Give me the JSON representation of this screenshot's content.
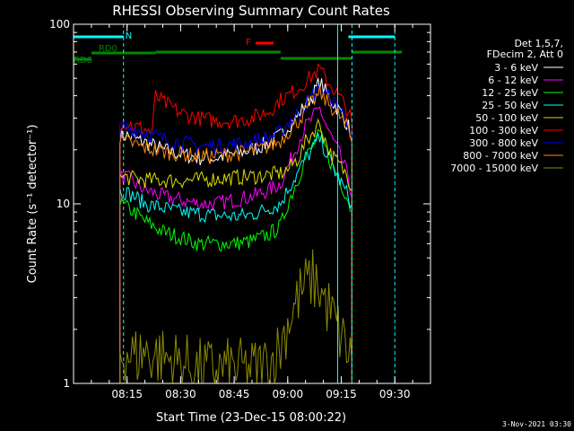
{
  "chart_data": {
    "type": "line",
    "title": "RHESSI Observing Summary Count Rates",
    "xlabel": "Start Time (23-Dec-15 08:00:22)",
    "ylabel": "Count Rate (s⁻¹ detector⁻¹)",
    "x_unit": "time",
    "xlim": [
      "08:00",
      "09:40"
    ],
    "ylim": [
      1,
      100
    ],
    "y_scale": "log",
    "x_ticks": [
      "08:15",
      "08:30",
      "08:45",
      "09:00",
      "09:15",
      "09:30"
    ],
    "y_ticks": [
      1,
      10,
      100
    ],
    "y_tick_labels": [
      "1",
      "10",
      "100"
    ],
    "legend_position": "right",
    "legend_header": [
      "Det 1,5,7,",
      "FDecim 2, Att 0"
    ],
    "footer": "3-Nov-2021 03:30",
    "grid": false,
    "series": [
      {
        "name": "3 - 6 keV",
        "color": "#ffffff",
        "x": [
          "08:13",
          "08:15",
          "08:17",
          "08:20",
          "08:25",
          "08:30",
          "08:35",
          "08:40",
          "08:45",
          "08:50",
          "08:55",
          "08:58",
          "09:00",
          "09:03",
          "09:05",
          "09:07",
          "09:08",
          "09:09",
          "09:10",
          "09:12",
          "09:15",
          "09:17",
          "09:18"
        ],
        "y": [
          24,
          24,
          23,
          22,
          20,
          19,
          18,
          18,
          19,
          20,
          22,
          24,
          27,
          31,
          36,
          40,
          44,
          48,
          44,
          38,
          32,
          27,
          24
        ]
      },
      {
        "name": "6 - 12 keV",
        "color": "#ff00ff",
        "x": [
          "08:13",
          "08:15",
          "08:17",
          "08:20",
          "08:25",
          "08:30",
          "08:35",
          "08:40",
          "08:45",
          "08:50",
          "08:55",
          "08:58",
          "09:00",
          "09:03",
          "09:05",
          "09:07",
          "09:08",
          "09:09",
          "09:10",
          "09:12",
          "09:15",
          "09:17",
          "09:18"
        ],
        "y": [
          14,
          14,
          13,
          12,
          11,
          10.5,
          10,
          10,
          10.5,
          11,
          12,
          13,
          16,
          22,
          27,
          30,
          32,
          34,
          30,
          24,
          18,
          14,
          11
        ]
      },
      {
        "name": "12 - 25 keV",
        "color": "#00ff00",
        "x": [
          "08:13",
          "08:15",
          "08:17",
          "08:20",
          "08:25",
          "08:30",
          "08:35",
          "08:40",
          "08:45",
          "08:50",
          "08:55",
          "08:58",
          "09:00",
          "09:03",
          "09:05",
          "09:07",
          "09:08",
          "09:09",
          "09:10",
          "09:12",
          "09:15",
          "09:17",
          "09:18"
        ],
        "y": [
          10,
          9.5,
          9,
          8,
          7,
          6.5,
          6,
          6,
          6,
          6.2,
          6.8,
          7.5,
          10,
          14,
          18,
          21,
          23,
          24,
          22,
          17,
          13,
          10.5,
          9
        ]
      },
      {
        "name": "25 - 50 keV",
        "color": "#00ffff",
        "x": [
          "08:13",
          "08:15",
          "08:17",
          "08:20",
          "08:25",
          "08:30",
          "08:35",
          "08:40",
          "08:45",
          "08:50",
          "08:55",
          "08:58",
          "09:00",
          "09:03",
          "09:05",
          "09:07",
          "09:08",
          "09:09",
          "09:10",
          "09:12",
          "09:15",
          "09:17",
          "09:18"
        ],
        "y": [
          12,
          11.5,
          11,
          10,
          9.5,
          9,
          8.8,
          8.6,
          8.5,
          8.7,
          9.5,
          10,
          12,
          15,
          18,
          20,
          22,
          23,
          21,
          17,
          13,
          11,
          10
        ]
      },
      {
        "name": "50 - 100 keV",
        "color": "#dddd00",
        "x": [
          "08:13",
          "08:15",
          "08:17",
          "08:20",
          "08:25",
          "08:30",
          "08:35",
          "08:40",
          "08:45",
          "08:50",
          "08:55",
          "08:58",
          "09:00",
          "09:03",
          "09:05",
          "09:07",
          "09:08",
          "09:09",
          "09:10",
          "09:12",
          "09:15",
          "09:17",
          "09:18"
        ],
        "y": [
          14,
          14,
          13.8,
          13.6,
          13.5,
          13.5,
          13.6,
          13.8,
          14,
          14.2,
          14.5,
          14.8,
          15.5,
          18,
          22,
          25,
          27,
          28,
          24,
          19,
          16,
          14,
          12
        ]
      },
      {
        "name": "100 - 300 keV",
        "color": "#ff0000",
        "x": [
          "08:13",
          "08:15",
          "08:17",
          "08:20",
          "08:22",
          "08:23",
          "08:25",
          "08:30",
          "08:35",
          "08:40",
          "08:45",
          "08:50",
          "08:55",
          "08:58",
          "09:00",
          "09:03",
          "09:05",
          "09:07",
          "09:08",
          "09:09",
          "09:10",
          "09:12",
          "09:15",
          "09:17",
          "09:18"
        ],
        "y": [
          28,
          28,
          27,
          26,
          25,
          40,
          37,
          32,
          30,
          29,
          29,
          30,
          33,
          38,
          40,
          44,
          48,
          52,
          54,
          56,
          52,
          46,
          38,
          33,
          28
        ]
      },
      {
        "name": "300 - 800 keV",
        "color": "#0000ff",
        "x": [
          "08:13",
          "08:15",
          "08:17",
          "08:20",
          "08:25",
          "08:30",
          "08:35",
          "08:40",
          "08:45",
          "08:50",
          "08:55",
          "08:58",
          "09:00",
          "09:03",
          "09:05",
          "09:07",
          "09:08",
          "09:09",
          "09:10",
          "09:12",
          "09:15",
          "09:17",
          "09:18"
        ],
        "y": [
          27,
          26.5,
          26,
          25,
          23,
          22,
          21,
          21,
          21.5,
          22,
          23.5,
          25,
          28,
          32,
          36,
          40,
          42,
          44,
          42,
          38,
          33,
          28,
          24
        ]
      },
      {
        "name": "800 - 7000 keV",
        "color": "#ff8800",
        "x": [
          "08:13",
          "08:15",
          "08:17",
          "08:20",
          "08:25",
          "08:30",
          "08:35",
          "08:40",
          "08:45",
          "08:50",
          "08:55",
          "08:58",
          "09:00",
          "09:03",
          "09:05",
          "09:07",
          "09:08",
          "09:09",
          "09:10",
          "09:12",
          "09:15",
          "09:17",
          "09:18"
        ],
        "y": [
          22,
          22,
          21.5,
          20.5,
          19.5,
          19,
          18.5,
          18.5,
          19,
          19.5,
          21,
          22.5,
          25,
          29,
          33,
          37,
          39,
          41,
          39,
          35,
          30,
          26,
          22
        ]
      },
      {
        "name": "7000 - 15000 keV",
        "color": "#8b8b00",
        "x": [
          "08:13",
          "08:15",
          "08:17",
          "08:20",
          "08:25",
          "08:30",
          "08:35",
          "08:40",
          "08:45",
          "08:50",
          "08:55",
          "08:58",
          "09:00",
          "09:03",
          "09:05",
          "09:07",
          "09:08",
          "09:09",
          "09:10",
          "09:12",
          "09:15",
          "09:17",
          "09:18"
        ],
        "y": [
          1.5,
          1.5,
          1.4,
          1.5,
          1.4,
          1.3,
          1.2,
          1.2,
          1.2,
          1.2,
          1.3,
          1.6,
          2.2,
          3,
          3.5,
          3.8,
          3.6,
          3.4,
          3,
          2.5,
          1.8,
          1.5,
          1.3
        ]
      }
    ],
    "annotations": {
      "N": {
        "label": "N",
        "color": "#00ffff",
        "intervals": [
          [
            "08:00",
            "08:14"
          ],
          [
            "09:17",
            "09:30"
          ]
        ]
      },
      "F": {
        "label": "F",
        "color": "#ff0000",
        "intervals": [
          [
            "08:51",
            "08:56"
          ]
        ]
      },
      "RD0": {
        "label": "RD0",
        "color": "#008800",
        "intervals": [
          [
            "08:05",
            "08:23"
          ],
          [
            "08:23",
            "08:58"
          ],
          [
            "08:58",
            "09:18"
          ],
          [
            "09:18",
            "09:32"
          ]
        ]
      },
      "RD6": {
        "label": "RD6",
        "color": "#008800",
        "intervals": [
          [
            "08:00",
            "08:05"
          ]
        ]
      }
    },
    "vlines": [
      {
        "x": "08:14",
        "color": "#00ffff",
        "style": "dashed"
      },
      {
        "x": "09:14",
        "color": "#00ffff",
        "style": "solid"
      },
      {
        "x": "09:18",
        "color": "#00ffff",
        "style": "dashed"
      },
      {
        "x": "09:30",
        "color": "#00ffff",
        "style": "dashed"
      }
    ]
  }
}
